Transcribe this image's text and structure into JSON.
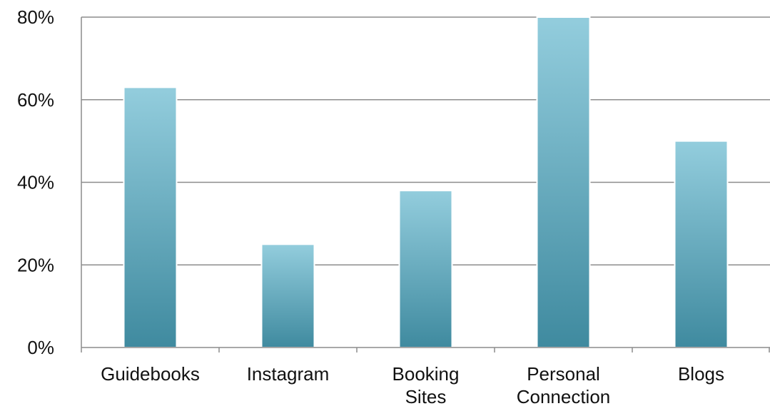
{
  "chart_data": {
    "type": "bar",
    "categories": [
      [
        "Guidebooks"
      ],
      [
        "Instagram"
      ],
      [
        "Booking",
        "Sites"
      ],
      [
        "Personal",
        "Connection"
      ],
      [
        "Blogs"
      ]
    ],
    "values": [
      63,
      25,
      38,
      80,
      50
    ],
    "ylim": [
      0,
      80
    ],
    "yticks": [
      0,
      20,
      40,
      60,
      80
    ],
    "ytick_labels": [
      "0%",
      "20%",
      "40%",
      "60%",
      "80%"
    ],
    "grid": true,
    "legend": "none",
    "colors": {
      "bar_top": "#93cddd",
      "bar_bottom": "#3f8a9f",
      "grid": "#8c8c8c",
      "axis": "#8c8c8c"
    }
  }
}
